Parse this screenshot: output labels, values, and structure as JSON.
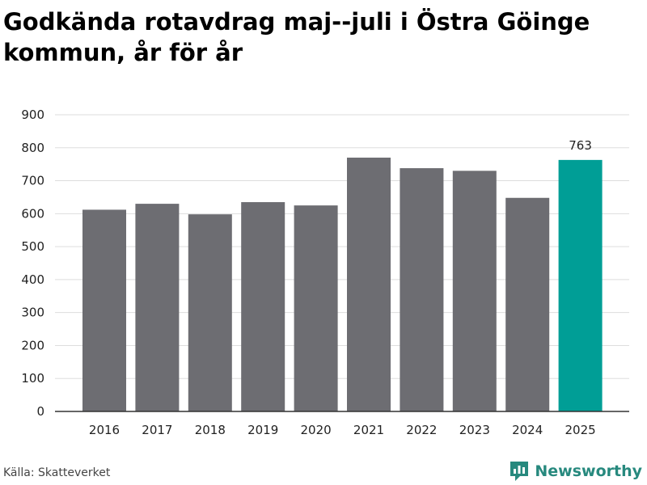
{
  "title": "Godkända rotavdrag maj--juli i Östra Göinge kommun, år för år",
  "source": "Källa: Skatteverket",
  "brand": {
    "name": "Newsworthy",
    "icon": "newsworthy-logo-icon"
  },
  "colors": {
    "bar": "#6d6d72",
    "highlight": "#009e96",
    "grid": "#dddddd",
    "axis": "#333333"
  },
  "chart_data": {
    "type": "bar",
    "categories": [
      "2016",
      "2017",
      "2018",
      "2019",
      "2020",
      "2021",
      "2022",
      "2023",
      "2024",
      "2025"
    ],
    "values": [
      612,
      630,
      598,
      635,
      625,
      770,
      738,
      730,
      648,
      763
    ],
    "highlight_index": 9,
    "data_labels": {
      "2025": "763"
    },
    "yticks": [
      0,
      100,
      200,
      300,
      400,
      500,
      600,
      700,
      800,
      900
    ],
    "ylim": [
      0,
      900
    ],
    "grid": true,
    "xlabel": "",
    "ylabel": ""
  }
}
